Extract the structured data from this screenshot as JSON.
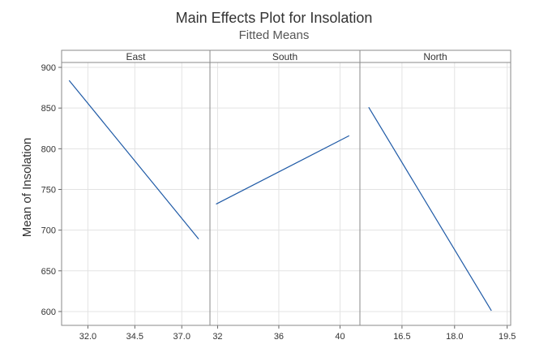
{
  "chart_data": {
    "type": "line",
    "title": "Main Effects Plot for Insolation",
    "subtitle": "Fitted Means",
    "ylabel": "Mean of Insolation",
    "ylim": [
      583,
      906
    ],
    "yticks": [
      600,
      650,
      700,
      750,
      800,
      850,
      900
    ],
    "grid": true,
    "line_color": "#1f5aa6",
    "panels": [
      {
        "name": "East",
        "xlim": [
          30.6,
          38.5
        ],
        "xticks": [
          "32.0",
          "34.5",
          "37.0"
        ],
        "xtick_values": [
          32.0,
          34.5,
          37.0
        ],
        "x": [
          31.0,
          37.9
        ],
        "y": [
          884,
          689
        ]
      },
      {
        "name": "South",
        "xlim": [
          31.5,
          41.3
        ],
        "xticks": [
          "32",
          "36",
          "40"
        ],
        "xtick_values": [
          32,
          36,
          40
        ],
        "x": [
          31.9,
          40.6
        ],
        "y": [
          732,
          816
        ]
      },
      {
        "name": "North",
        "xlim": [
          15.3,
          19.6
        ],
        "xticks": [
          "16.5",
          "18.0",
          "19.5"
        ],
        "xtick_values": [
          16.5,
          18.0,
          19.5
        ],
        "x": [
          15.55,
          19.05
        ],
        "y": [
          851,
          601
        ]
      }
    ]
  }
}
